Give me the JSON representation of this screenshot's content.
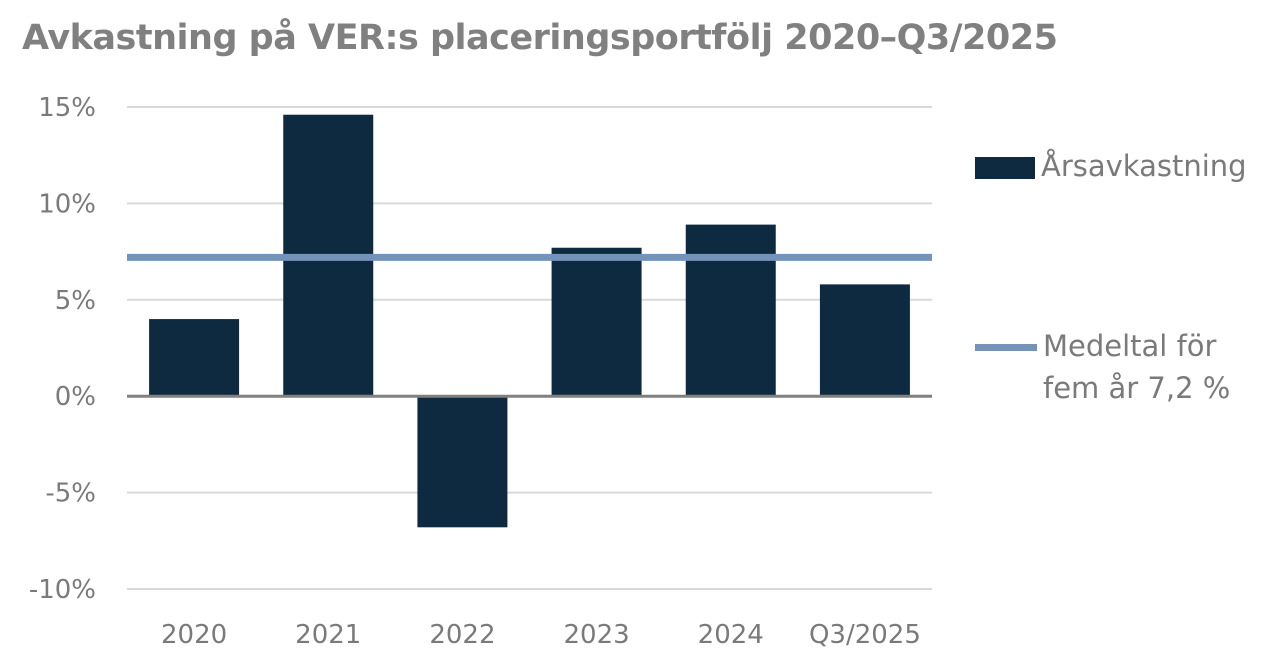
{
  "title": "Avkastning på VER:s placeringsportfölj 2020–Q3/2025",
  "chart_data": {
    "type": "bar",
    "title": "Avkastning på VER:s placeringsportfölj 2020–Q3/2025",
    "categories": [
      "2020",
      "2021",
      "2022",
      "2023",
      "2024",
      "Q3/2025"
    ],
    "series": [
      {
        "name": "Årsavkastning",
        "values": [
          4.0,
          14.6,
          -6.8,
          7.7,
          8.9,
          5.8
        ],
        "color": "#0d2a40",
        "type": "bar"
      },
      {
        "name": "Medeltal för fem år 7,2 %",
        "value": 7.2,
        "color": "#7393b9",
        "type": "hline"
      }
    ],
    "ylim": [
      -10,
      15
    ],
    "yticks": [
      15,
      10,
      5,
      0,
      -5,
      -10
    ],
    "ytick_labels": [
      "15%",
      "10%",
      "5%",
      "0%",
      "-5%",
      "-10%"
    ],
    "xlabel": "",
    "ylabel": "",
    "grid": true,
    "legend": "right"
  },
  "legend": {
    "bar_label": "Årsavkastning",
    "line_label_1": "Medeltal för",
    "line_label_2": "fem år 7,2 %"
  }
}
